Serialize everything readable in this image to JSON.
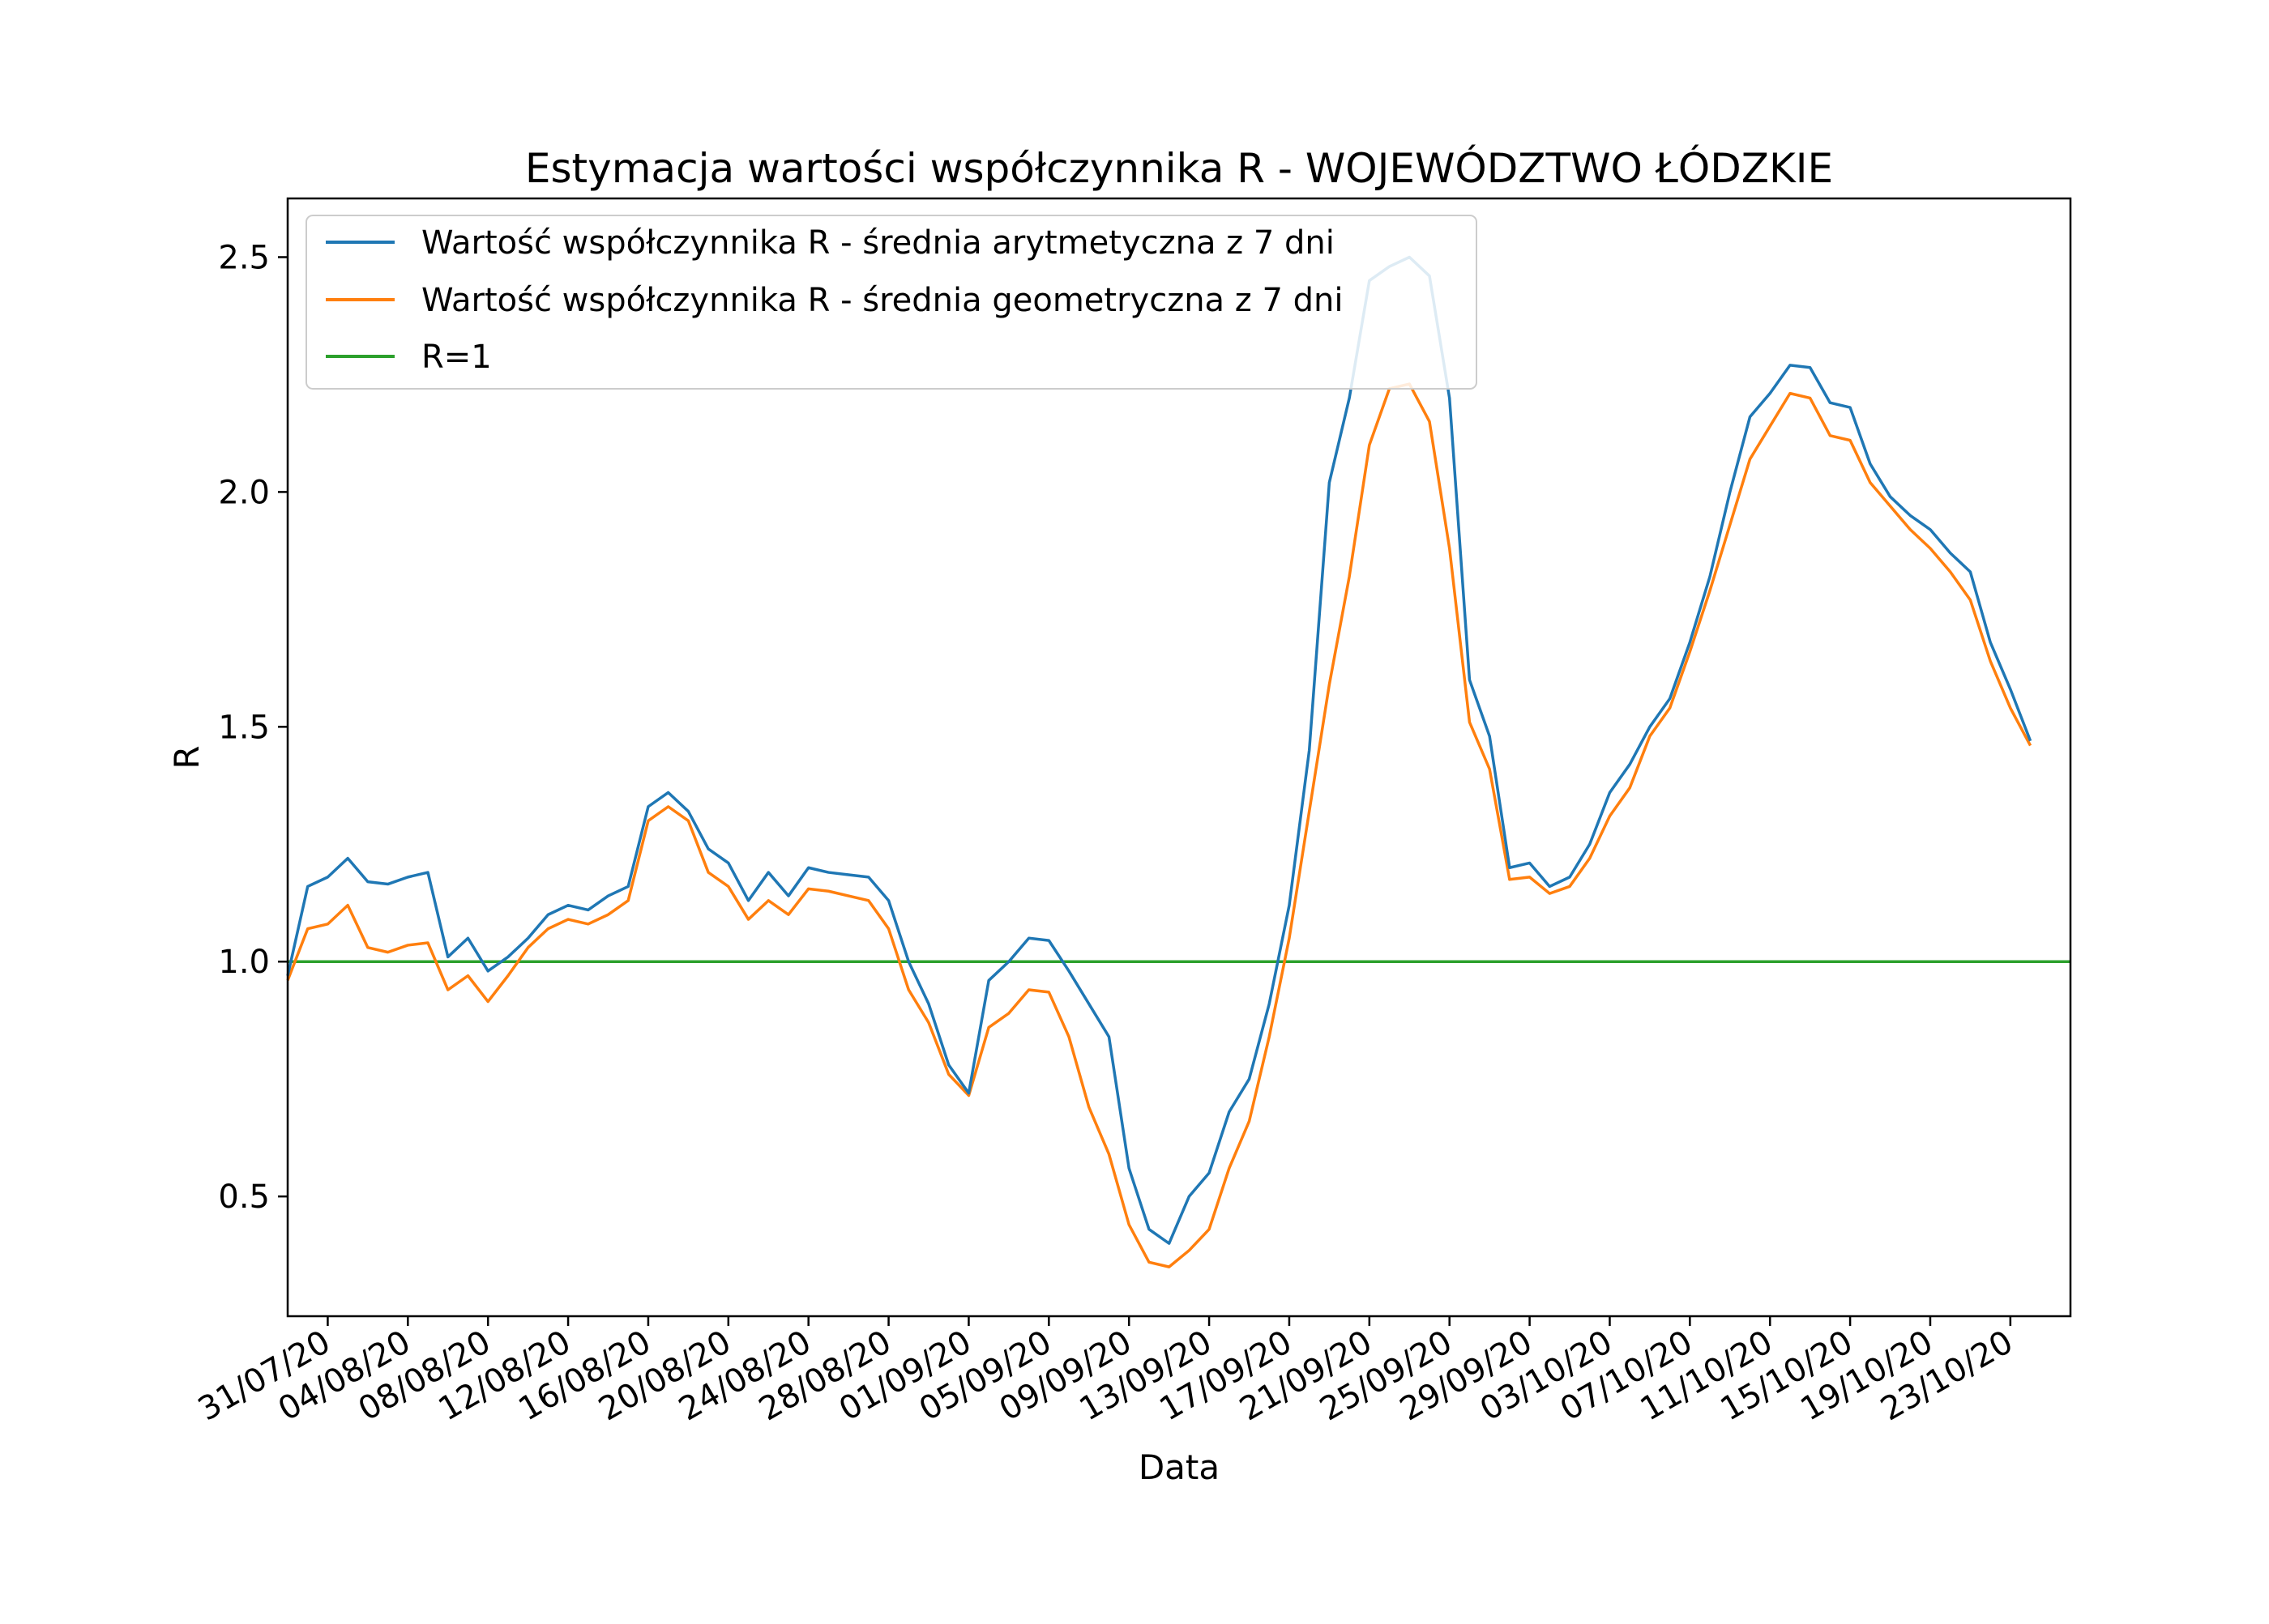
{
  "chart_data": {
    "type": "line",
    "title": "Estymacja wartości współczynnika R - WOJEWÓDZTWO ŁÓDZKIE",
    "xlabel": "Data",
    "ylabel": "R",
    "x_start": "29/07/20",
    "x_end": "25/10/20",
    "xlim": [
      "29/07/20",
      "26/10/20"
    ],
    "ylim": [
      0.245,
      2.625
    ],
    "x_ticks": [
      "31/07/20",
      "04/08/20",
      "08/08/20",
      "12/08/20",
      "16/08/20",
      "20/08/20",
      "24/08/20",
      "28/08/20",
      "01/09/20",
      "05/09/20",
      "09/09/20",
      "13/09/20",
      "17/09/20",
      "21/09/20",
      "25/09/20",
      "29/09/20",
      "03/10/20",
      "07/10/20",
      "11/10/20",
      "15/10/20",
      "19/10/20",
      "23/10/20"
    ],
    "y_ticks": [
      "0.5",
      "1.0",
      "1.5",
      "2.0",
      "2.5"
    ],
    "y_tick_values": [
      0.5,
      1.0,
      1.5,
      2.0,
      2.5
    ],
    "grid": false,
    "legend_position": "top-left",
    "series": [
      {
        "name": "Wartość współczynnika R - średnia arytmetyczna z 7 dni",
        "color": "#1f77b4",
        "values": [
          0.97,
          1.16,
          1.18,
          1.22,
          1.17,
          1.165,
          1.18,
          1.19,
          1.01,
          1.05,
          0.98,
          1.01,
          1.05,
          1.1,
          1.12,
          1.11,
          1.14,
          1.16,
          1.33,
          1.36,
          1.32,
          1.24,
          1.21,
          1.13,
          1.19,
          1.14,
          1.2,
          1.19,
          1.185,
          1.18,
          1.13,
          1.0,
          0.91,
          0.78,
          0.72,
          0.96,
          1.0,
          1.05,
          1.045,
          0.98,
          0.91,
          0.84,
          0.56,
          0.43,
          0.4,
          0.5,
          0.55,
          0.68,
          0.75,
          0.91,
          1.12,
          1.45,
          2.02,
          2.2,
          2.45,
          2.48,
          2.5,
          2.46,
          2.2,
          1.6,
          1.48,
          1.2,
          1.21,
          1.16,
          1.18,
          1.25,
          1.36,
          1.42,
          1.5,
          1.56,
          1.68,
          1.82,
          2.0,
          2.16,
          2.21,
          2.27,
          2.265,
          2.19,
          2.18,
          2.06,
          1.99,
          1.95,
          1.92,
          1.87,
          1.83,
          1.68,
          1.58,
          1.47
        ]
      },
      {
        "name": "Wartość współczynnika R - średnia geometryczna z 7 dni",
        "color": "#ff7f0e",
        "values": [
          0.96,
          1.07,
          1.08,
          1.12,
          1.03,
          1.02,
          1.035,
          1.04,
          0.94,
          0.97,
          0.915,
          0.97,
          1.03,
          1.07,
          1.09,
          1.08,
          1.1,
          1.13,
          1.3,
          1.33,
          1.3,
          1.19,
          1.16,
          1.09,
          1.13,
          1.1,
          1.155,
          1.15,
          1.14,
          1.13,
          1.07,
          0.94,
          0.87,
          0.76,
          0.715,
          0.86,
          0.89,
          0.94,
          0.935,
          0.84,
          0.69,
          0.59,
          0.44,
          0.36,
          0.35,
          0.385,
          0.43,
          0.56,
          0.66,
          0.84,
          1.05,
          1.32,
          1.59,
          1.82,
          2.1,
          2.22,
          2.23,
          2.15,
          1.88,
          1.51,
          1.41,
          1.175,
          1.18,
          1.145,
          1.16,
          1.22,
          1.31,
          1.37,
          1.48,
          1.54,
          1.66,
          1.79,
          1.93,
          2.07,
          2.14,
          2.21,
          2.2,
          2.12,
          2.11,
          2.02,
          1.97,
          1.92,
          1.88,
          1.83,
          1.77,
          1.64,
          1.54,
          1.46
        ]
      },
      {
        "name": "R=1",
        "color": "#2ca02c",
        "values": [
          1.0,
          1.0
        ]
      }
    ]
  }
}
